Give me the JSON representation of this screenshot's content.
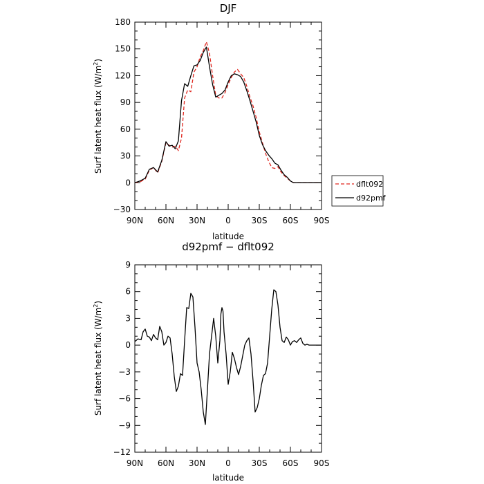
{
  "chart_data": [
    {
      "type": "line",
      "title": "DJF",
      "xlabel": "latitude",
      "ylabel": "Surf latent heat flux (W/m²)",
      "ylabel_text": "Surf latent heat flux (W/m",
      "ylabel_unit_sup": "2",
      "ylabel_close": ")",
      "xlim": [
        -90,
        90
      ],
      "ylim": [
        -30,
        180
      ],
      "x_ticks": [
        -90,
        -60,
        -30,
        0,
        30,
        60,
        90
      ],
      "x_ticklabels": [
        "90N",
        "60N",
        "30N",
        "0",
        "30S",
        "60S",
        "90S"
      ],
      "y_ticks": [
        -30,
        0,
        30,
        60,
        90,
        120,
        150,
        180
      ],
      "y_ticklabels": [
        "−30",
        "0",
        "30",
        "60",
        "90",
        "120",
        "150",
        "180"
      ],
      "legend": {
        "placement": "right",
        "entries": [
          "dflt092",
          "d92pmf"
        ]
      },
      "series": [
        {
          "name": "dflt092",
          "color": "#e0261e",
          "dash": "dashed",
          "x": [
            -90,
            -85,
            -80,
            -76,
            -72,
            -68,
            -64,
            -60,
            -57,
            -54,
            -51,
            -48,
            -45,
            -42,
            -39,
            -36,
            -33,
            -30,
            -27,
            -24,
            -21,
            -18,
            -15,
            -12,
            -9,
            -6,
            -3,
            0,
            3,
            6,
            9,
            12,
            15,
            18,
            21,
            24,
            27,
            30,
            33,
            36,
            39,
            42,
            45,
            48,
            51,
            54,
            57,
            60,
            63,
            66,
            69,
            72,
            75,
            78,
            81,
            84,
            87,
            90
          ],
          "y": [
            0,
            1,
            4,
            14,
            17,
            11,
            24,
            45,
            42,
            40,
            41,
            36,
            50,
            95,
            104,
            102,
            124,
            130,
            141,
            148,
            158,
            145,
            120,
            98,
            95,
            95,
            101,
            110,
            118,
            124,
            127,
            122,
            118,
            108,
            96,
            86,
            73,
            57,
            45,
            33,
            24,
            17,
            16,
            18,
            12,
            8,
            5,
            2,
            0,
            0,
            0,
            0,
            0,
            0,
            0,
            0,
            0,
            0
          ]
        },
        {
          "name": "d92pmf",
          "color": "#000000",
          "dash": "solid",
          "x": [
            -90,
            -85,
            -80,
            -76,
            -72,
            -68,
            -64,
            -60,
            -57,
            -54,
            -51,
            -48,
            -45,
            -42,
            -39,
            -36,
            -33,
            -30,
            -27,
            -24,
            -21,
            -18,
            -15,
            -12,
            -9,
            -6,
            -3,
            0,
            3,
            6,
            9,
            12,
            15,
            18,
            21,
            24,
            27,
            30,
            33,
            36,
            39,
            42,
            45,
            48,
            51,
            54,
            57,
            60,
            63,
            66,
            69,
            72,
            75,
            78,
            81,
            84,
            87,
            90
          ],
          "y": [
            0,
            2,
            5,
            15,
            17,
            12,
            25,
            46,
            41,
            42,
            38,
            47,
            92,
            111,
            108,
            120,
            131,
            132,
            137,
            146,
            152,
            130,
            110,
            96,
            98,
            100,
            104,
            113,
            120,
            122,
            121,
            119,
            113,
            103,
            92,
            80,
            68,
            53,
            43,
            36,
            31,
            27,
            22,
            20,
            14,
            9,
            6,
            2,
            0,
            0,
            0,
            0,
            0,
            0,
            0,
            0,
            0,
            0
          ]
        }
      ]
    },
    {
      "type": "line",
      "title": "d92pmf − dflt092",
      "xlabel": "latitude",
      "ylabel": "Surf latent heat flux (W/m²)",
      "ylabel_text": "Surf latent heat flux (W/m",
      "ylabel_unit_sup": "2",
      "ylabel_close": ")",
      "xlim": [
        -90,
        90
      ],
      "ylim": [
        -12,
        9
      ],
      "x_ticks": [
        -90,
        -60,
        -30,
        0,
        30,
        60,
        90
      ],
      "x_ticklabels": [
        "90N",
        "60N",
        "30N",
        "0",
        "30S",
        "60S",
        "90S"
      ],
      "y_ticks": [
        -12,
        -9,
        -6,
        -3,
        0,
        3,
        6,
        9
      ],
      "y_ticklabels": [
        "−12",
        "−9",
        "−6",
        "−3",
        "0",
        "3",
        "6",
        "9"
      ],
      "series": [
        {
          "name": "d92pmf − dflt092",
          "color": "#000000",
          "dash": "solid",
          "x": [
            -90,
            -87,
            -84,
            -82,
            -80,
            -78,
            -76,
            -74,
            -72,
            -70,
            -68,
            -66,
            -64,
            -62,
            -60,
            -58,
            -56,
            -54,
            -52,
            -50,
            -48,
            -46,
            -44,
            -42,
            -40,
            -38,
            -36,
            -34,
            -32,
            -30,
            -28,
            -26,
            -24,
            -22,
            -20,
            -18,
            -17,
            -16,
            -14,
            -12,
            -10,
            -8,
            -7,
            -6,
            -5,
            -4,
            -2,
            0,
            2,
            4,
            6,
            8,
            10,
            12,
            14,
            16,
            18,
            20,
            22,
            24,
            26,
            28,
            30,
            32,
            34,
            36,
            38,
            40,
            42,
            44,
            46,
            48,
            50,
            52,
            54,
            56,
            58,
            60,
            62,
            64,
            66,
            68,
            70,
            72,
            74,
            76,
            78,
            80,
            82,
            84,
            86,
            88,
            90
          ],
          "y": [
            0.4,
            0.7,
            0.6,
            1.5,
            1.8,
            1.0,
            0.9,
            0.5,
            1.2,
            0.8,
            0.6,
            2.1,
            1.5,
            0.0,
            0.3,
            1.0,
            0.8,
            -1.0,
            -3.5,
            -5.2,
            -4.6,
            -3.2,
            -3.4,
            0.5,
            4.2,
            4.1,
            5.8,
            5.4,
            2.0,
            -2.0,
            -3.0,
            -5.0,
            -7.5,
            -8.9,
            -5.0,
            -1.0,
            0.0,
            1.0,
            3.0,
            1.0,
            -2.0,
            0.5,
            3.5,
            4.2,
            3.8,
            1.5,
            -1.0,
            -4.4,
            -3.0,
            -0.8,
            -1.5,
            -2.5,
            -3.3,
            -2.4,
            -1.2,
            0.0,
            0.5,
            0.8,
            -1.0,
            -4.0,
            -7.5,
            -7.0,
            -6.0,
            -4.5,
            -3.4,
            -3.2,
            -2.0,
            1.0,
            4.0,
            6.2,
            6.0,
            4.5,
            2.0,
            0.5,
            0.3,
            0.9,
            0.6,
            0.0,
            0.4,
            0.5,
            0.3,
            0.6,
            0.8,
            0.2,
            0.0,
            0.1,
            0.0,
            0.0,
            0.0,
            0.0,
            0.0,
            0.0,
            0.0
          ]
        }
      ]
    }
  ]
}
